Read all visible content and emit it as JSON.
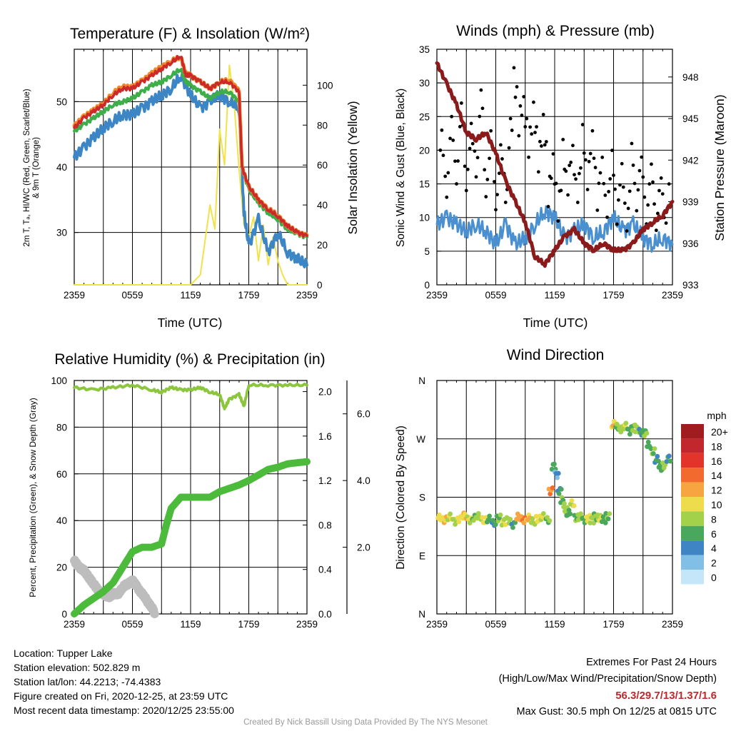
{
  "panels": {
    "temp": {
      "title": "Temperature (F) & Insolation (W/m²)",
      "xlabel": "Time (UTC)",
      "ylabel_line1": "2m T, Tₐ, HI/WC (Red, Green, Scarlet/Blue)",
      "ylabel_line2": "& 9m T (Orange)",
      "ylabel_right": "Solar Insolation (Yellow)"
    },
    "winds": {
      "title": "Winds (mph) & Pressure (mb)",
      "xlabel": "Time (UTC)",
      "ylabel_left": "Sonic Wind & Gust (Blue, Black)",
      "ylabel_right": "Station Pressure (Maroon)"
    },
    "rh": {
      "title": "Relative Humidity (%) & Precipitation (in)",
      "ylabel_left": "Percent, Precipitation (Green), & Snow Depth (Gray)"
    },
    "wdir": {
      "title": "Wind Direction",
      "ylabel_left": "Direction (Colored By Speed)",
      "legend_title": "mph",
      "legend_labels": [
        "20+",
        "18",
        "16",
        "14",
        "12",
        "10",
        "8",
        "6",
        "4",
        "2",
        "0"
      ],
      "legend_colors": [
        "#a01c1f",
        "#c1272d",
        "#e3342b",
        "#f26a2e",
        "#f7a540",
        "#eedc4d",
        "#a3d14a",
        "#4aa85c",
        "#3f84c3",
        "#82bfe6",
        "#c5e6f8"
      ]
    }
  },
  "footer": {
    "location": "Location: Tupper Lake",
    "elevation": "Station elevation: 502.829 m",
    "latlon": "Station lat/lon: 44.2213; -74.4383",
    "created": "Figure created on Fri, 2020-12-25, at 23:59 UTC",
    "recent": "Most recent data timestamp: 2020/12/25 23:55:00",
    "extremes_title": "Extremes For Past 24 Hours",
    "extremes_subtitle": "(High/Low/Max Wind/Precipitation/Snow Depth)",
    "extremes_values": "56.3/29.7/13/1.37/1.6",
    "max_gust": "Max Gust: 30.5 mph On 12/25 at 0815 UTC",
    "credit": "Created By Nick Bassill Using Data Provided By The NYS Mesonet"
  },
  "colors": {
    "temp_red": "#cc2a2a",
    "temp_orange": "#f08a2a",
    "temp_green": "#3dae4a",
    "temp_blue": "#3d86c6",
    "insolation": "#f2e24a",
    "wind_blue": "#4a90d0",
    "gust_black": "#000000",
    "pressure": "#8b1a1a",
    "rh_green": "#8cc63f",
    "precip_green": "#4cbb3c",
    "snow_gray": "#bdbdbd"
  },
  "chart_data": [
    {
      "type": "line",
      "title": "Temperature (F) & Insolation (W/m²)",
      "xlabel": "Time (UTC)",
      "x_ticks": [
        "2359",
        "0559",
        "1159",
        "1759",
        "2359"
      ],
      "xlim": [
        0,
        24
      ],
      "ylim_left": [
        22,
        58
      ],
      "yticks_left": [
        30,
        40,
        50
      ],
      "ylim_right": [
        0,
        118
      ],
      "yticks_right": [
        0,
        20,
        40,
        60,
        80,
        100
      ],
      "series": [
        {
          "name": "2m T",
          "axis": "left",
          "x": [
            0,
            1,
            2,
            3,
            4,
            5,
            6,
            7,
            8,
            9,
            10,
            11,
            11.5,
            12,
            13,
            14,
            15,
            16,
            17,
            17.3,
            18,
            19,
            20,
            21,
            22,
            23,
            24
          ],
          "y": [
            46,
            47.5,
            48.5,
            49.5,
            51,
            52,
            52,
            53,
            54,
            55,
            56,
            57,
            54,
            54,
            53,
            52,
            53,
            53,
            51.5,
            40,
            37,
            35,
            33.5,
            32.5,
            31,
            30,
            29.5
          ]
        },
        {
          "name": "9m T",
          "axis": "left",
          "x": [
            0,
            1,
            2,
            3,
            4,
            5,
            6,
            7,
            8,
            9,
            10,
            11,
            11.5,
            12,
            13,
            14,
            15,
            16,
            17,
            17.3,
            18,
            19,
            20,
            21,
            22,
            23,
            24
          ],
          "y": [
            46.3,
            47.7,
            48.7,
            49.7,
            51.3,
            52.3,
            52.2,
            53.2,
            54.3,
            55.3,
            56.2,
            56.8,
            54.2,
            54,
            53,
            52,
            53,
            53.3,
            51.7,
            40,
            37,
            35,
            33.6,
            32.6,
            31,
            30,
            29.6
          ]
        },
        {
          "name": "HI/WC",
          "axis": "left",
          "x": [
            0,
            1,
            2,
            3,
            4,
            5,
            6,
            7,
            8,
            9,
            10,
            11,
            11.5,
            12,
            13,
            14,
            15,
            16,
            17,
            17.3,
            18,
            19,
            20,
            21,
            22,
            23,
            24
          ],
          "y": [
            45.5,
            46.5,
            47.5,
            48.5,
            49.5,
            50,
            50.5,
            51.5,
            52.5,
            53,
            54,
            55,
            53,
            52.5,
            51.5,
            50.5,
            51.5,
            51.5,
            50,
            40,
            36.5,
            34.5,
            33,
            32,
            30.5,
            29.8,
            29.3
          ]
        },
        {
          "name": "Tₐ",
          "axis": "left",
          "x": [
            0,
            1,
            2,
            3,
            4,
            5,
            6,
            7,
            8,
            9,
            10,
            11,
            12,
            13,
            14,
            15,
            16,
            17,
            17.5,
            18,
            19,
            20,
            21,
            22,
            23,
            24
          ],
          "y": [
            41.5,
            43,
            44.5,
            46,
            47,
            48,
            48,
            49,
            50,
            51,
            52,
            54,
            51,
            49,
            50,
            51,
            50,
            49,
            33,
            28,
            32,
            27,
            30,
            27,
            26,
            25
          ]
        },
        {
          "name": "Solar Insolation",
          "axis": "right",
          "x": [
            0,
            12,
            13,
            14,
            14.5,
            15,
            15.5,
            16,
            16.5,
            17,
            17.5,
            18,
            18.5,
            19,
            19.5,
            20,
            20.5,
            21,
            21.5,
            22,
            24
          ],
          "y": [
            0,
            0,
            5,
            40,
            28,
            78,
            60,
            110,
            90,
            58,
            30,
            24,
            34,
            12,
            30,
            10,
            24,
            12,
            5,
            0,
            0
          ]
        }
      ]
    },
    {
      "type": "line",
      "title": "Winds (mph) & Pressure (mb)",
      "xlabel": "Time (UTC)",
      "x_ticks": [
        "2359",
        "0559",
        "1159",
        "1759",
        "2359"
      ],
      "xlim": [
        0,
        24
      ],
      "ylim_left": [
        0,
        35
      ],
      "yticks_left": [
        0,
        5,
        10,
        15,
        20,
        25,
        30,
        35
      ],
      "ylim_right": [
        933,
        950
      ],
      "yticks_right": [
        933,
        936,
        939,
        942,
        945,
        948
      ],
      "series": [
        {
          "name": "Sonic Wind",
          "axis": "left",
          "x": [
            0,
            1,
            2,
            3,
            4,
            5,
            6,
            7,
            8,
            9,
            10,
            11,
            12,
            13,
            14,
            15,
            16,
            17,
            18,
            19,
            20,
            21,
            22,
            23,
            24
          ],
          "y": [
            9,
            10,
            9,
            8,
            9,
            8,
            6,
            9,
            6,
            7,
            9,
            11,
            10,
            7,
            8,
            9,
            7,
            8,
            10,
            8,
            9,
            7,
            6,
            7,
            6
          ]
        },
        {
          "name": "Gust",
          "axis": "left",
          "type": "scatter",
          "x": [
            0.5,
            1,
            1.5,
            2,
            2.5,
            3,
            3.5,
            4,
            4.5,
            5,
            5.5,
            6,
            6.5,
            7,
            7.5,
            8,
            8.5,
            9,
            9.5,
            10,
            10.5,
            11,
            11.5,
            12,
            12.5,
            13,
            13.5,
            14,
            14.5,
            15,
            15.5,
            16,
            16.5,
            17,
            17.5,
            18,
            18.5,
            19,
            19.5,
            20,
            20.5,
            21,
            21.5,
            22,
            22.5,
            23,
            23.5
          ],
          "y": [
            20,
            16,
            22,
            18,
            24,
            17,
            21,
            19,
            26,
            16,
            20,
            14,
            18,
            15,
            22,
            30.5,
            24,
            26,
            21,
            25,
            19,
            23,
            14,
            17,
            12,
            19,
            16,
            18,
            15,
            21,
            17,
            20,
            14,
            16,
            13,
            17,
            12,
            15,
            11,
            18,
            14,
            16,
            12,
            15,
            11,
            13,
            12
          ]
        },
        {
          "name": "Station Pressure",
          "axis": "right",
          "x": [
            0,
            1,
            2,
            3,
            4,
            5,
            6,
            7,
            8,
            9,
            10,
            11,
            12,
            13,
            14,
            15,
            16,
            17,
            18,
            19,
            20,
            21,
            22,
            23,
            24
          ],
          "y": [
            949,
            947.5,
            946,
            944,
            943.5,
            944,
            942.5,
            940.5,
            939,
            937.5,
            935,
            934.5,
            935.5,
            936.5,
            937,
            936,
            935.5,
            936,
            935.5,
            935.5,
            936,
            937,
            937.5,
            938,
            939
          ]
        }
      ]
    },
    {
      "type": "line",
      "title": "Relative Humidity (%) & Precipitation (in)",
      "x_ticks": [
        "2359",
        "0559",
        "1159",
        "1759",
        "2359"
      ],
      "xlim": [
        0,
        24
      ],
      "ylim_left": [
        0,
        100
      ],
      "yticks_left": [
        0,
        20,
        40,
        60,
        80,
        100
      ],
      "axis_precip": {
        "ylim": [
          0,
          2.1
        ],
        "ticks": [
          0.0,
          0.4,
          0.8,
          1.2,
          1.6,
          2.0
        ]
      },
      "axis_snow": {
        "ylim": [
          0,
          7
        ],
        "ticks": [
          2.0,
          4.0,
          6.0
        ]
      },
      "series": [
        {
          "name": "Relative Humidity",
          "axis": "left",
          "x": [
            0,
            2,
            4,
            6,
            8,
            9,
            10,
            11,
            12,
            13,
            14,
            15,
            15.5,
            16,
            17,
            17.5,
            18,
            20,
            22,
            24
          ],
          "y": [
            97,
            96,
            97,
            98,
            96,
            95,
            97,
            96,
            96,
            97,
            95,
            94,
            88,
            92,
            94,
            89,
            98,
            98,
            98,
            98
          ]
        },
        {
          "name": "Precipitation",
          "axis": "precip",
          "x": [
            0,
            1,
            2,
            3,
            4,
            5,
            6,
            7,
            8,
            9,
            9.5,
            10,
            11,
            12,
            13,
            14,
            15,
            16,
            17,
            18,
            19,
            20,
            21,
            22,
            23,
            24
          ],
          "y": [
            0,
            0.08,
            0.14,
            0.2,
            0.28,
            0.42,
            0.56,
            0.6,
            0.6,
            0.63,
            0.8,
            0.95,
            1.05,
            1.05,
            1.05,
            1.05,
            1.1,
            1.13,
            1.16,
            1.2,
            1.25,
            1.3,
            1.32,
            1.35,
            1.36,
            1.37
          ]
        },
        {
          "name": "Snow Depth",
          "axis": "snow",
          "x": [
            0,
            0.5,
            1,
            1.5,
            2,
            2.5,
            3,
            3.5,
            4,
            4.5,
            5,
            5.5,
            6,
            6.5,
            7,
            7.5,
            8,
            8.3
          ],
          "y": [
            1.6,
            1.4,
            1.3,
            1.1,
            0.9,
            0.7,
            0.6,
            0.5,
            0.6,
            0.6,
            0.8,
            0.9,
            1.0,
            0.8,
            0.6,
            0.4,
            0.2,
            0.0
          ]
        }
      ]
    },
    {
      "type": "scatter",
      "title": "Wind Direction",
      "x_ticks": [
        "2359",
        "0559",
        "1159",
        "1759",
        "2359"
      ],
      "xlim": [
        0,
        24
      ],
      "y_ticks": [
        "N",
        "E",
        "S",
        "W",
        "N"
      ],
      "ylim": [
        0,
        360
      ],
      "legend_title": "mph",
      "legend_placement": "right",
      "series": [
        {
          "name": "Direction",
          "x": [
            0.3,
            0.8,
            1.3,
            1.8,
            2.3,
            2.8,
            3.3,
            3.8,
            4.3,
            4.8,
            5.3,
            5.8,
            6.3,
            6.8,
            7.3,
            7.8,
            8.3,
            8.8,
            9.3,
            9.8,
            10.3,
            10.8,
            11.3,
            11.6,
            11.9,
            12.2,
            12.5,
            12.8,
            13.1,
            13.4,
            13.8,
            14.2,
            14.6,
            15.0,
            15.4,
            15.8,
            16.2,
            16.6,
            17.0,
            17.4,
            18.0,
            18.4,
            18.8,
            19.2,
            19.6,
            20.0,
            20.4,
            20.8,
            21.2,
            21.6,
            22.0,
            22.4,
            22.8,
            23.2,
            23.6
          ],
          "y": [
            148,
            145,
            150,
            143,
            147,
            152,
            145,
            148,
            150,
            144,
            146,
            140,
            148,
            142,
            145,
            138,
            150,
            145,
            148,
            142,
            146,
            150,
            145,
            190,
            228,
            215,
            190,
            175,
            160,
            155,
            170,
            148,
            150,
            145,
            148,
            145,
            150,
            148,
            145,
            150,
            292,
            288,
            285,
            290,
            282,
            288,
            285,
            280,
            278,
            260,
            250,
            238,
            225,
            230,
            240
          ],
          "speed": [
            9,
            10,
            8,
            7,
            9,
            10,
            8,
            6,
            7,
            9,
            5,
            4,
            6,
            8,
            7,
            4,
            11,
            12,
            10,
            7,
            9,
            8,
            6,
            12,
            5,
            2,
            4,
            6,
            7,
            5,
            8,
            6,
            7,
            5,
            9,
            7,
            6,
            8,
            5,
            6,
            10,
            6,
            7,
            8,
            5,
            6,
            7,
            4,
            6,
            5,
            6,
            4,
            5,
            7,
            4
          ]
        }
      ]
    }
  ]
}
